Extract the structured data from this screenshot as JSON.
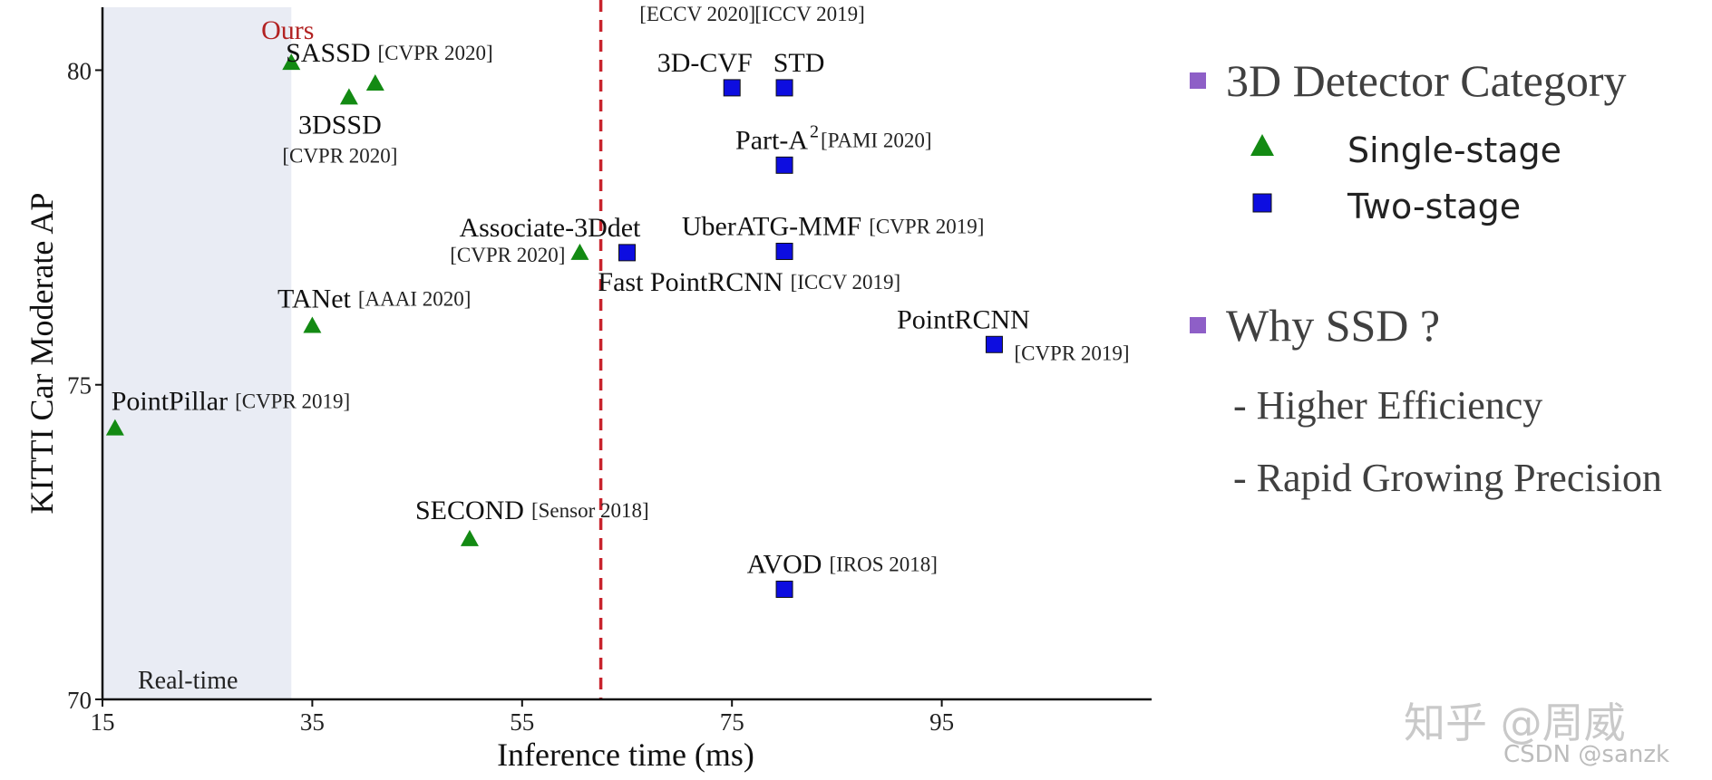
{
  "chart_data": {
    "type": "scatter",
    "xlabel": "Inference time (ms)",
    "ylabel": "KITTI Car Moderate AP",
    "xlim": [
      15,
      115
    ],
    "ylim": [
      70,
      81
    ],
    "xticks": [
      15,
      35,
      55,
      75,
      95
    ],
    "yticks": [
      70,
      75,
      80
    ],
    "realtime_region": {
      "x_from": 15,
      "x_to": 33,
      "label": "Real-time"
    },
    "threshold_line_x": 62.5,
    "colors": {
      "single": "#138a13",
      "two": "#0d0de0",
      "ours": "#b22222",
      "shade": "#e9ecf4",
      "threshold": "#c8232c"
    },
    "series": [
      {
        "name": "Single-stage",
        "marker": "triangle",
        "points": [
          {
            "x": 33.0,
            "y": 80.12,
            "name": "Ours",
            "ref": "",
            "highlight": true
          },
          {
            "x": 41.0,
            "y": 79.79,
            "name": "SASSD",
            "ref": "[CVPR 2020]"
          },
          {
            "x": 38.5,
            "y": 79.57,
            "name": "3DSSD",
            "ref": "[CVPR 2020]"
          },
          {
            "x": 60.5,
            "y": 77.1,
            "name": "Associate-3Ddet",
            "ref": "[CVPR 2020]"
          },
          {
            "x": 35.0,
            "y": 75.94,
            "name": "TANet",
            "ref": "[AAAI 2020]"
          },
          {
            "x": 16.2,
            "y": 74.31,
            "name": "PointPillar",
            "ref": "[CVPR 2019]"
          },
          {
            "x": 50.0,
            "y": 72.55,
            "name": "SECOND",
            "ref": "[Sensor 2018]"
          }
        ]
      },
      {
        "name": "Two-stage",
        "marker": "square",
        "points": [
          {
            "x": 75.0,
            "y": 79.72,
            "name": "3D-CVF",
            "ref": "[ECCV 2020]"
          },
          {
            "x": 80.0,
            "y": 79.72,
            "name": "STD",
            "ref": "[ICCV 2019]"
          },
          {
            "x": 80.0,
            "y": 78.49,
            "name": "Part-A",
            "sup": "2",
            "ref": "[PAMI 2020]"
          },
          {
            "x": 80.0,
            "y": 77.12,
            "name": "UberATG-MMF",
            "ref": "[CVPR 2019]"
          },
          {
            "x": 65.0,
            "y": 77.1,
            "name": "Fast PointRCNN",
            "ref": "[ICCV 2019]"
          },
          {
            "x": 100.0,
            "y": 75.64,
            "name": "PointRCNN",
            "ref": "[CVPR 2019]"
          },
          {
            "x": 80.0,
            "y": 71.75,
            "name": "AVOD",
            "ref": "[IROS 2018]"
          }
        ]
      }
    ]
  },
  "legend": {
    "title": "3D Detector Category",
    "items": [
      {
        "label": "Single-stage",
        "marker": "triangle"
      },
      {
        "label": "Two-stage",
        "marker": "square"
      }
    ],
    "bullet_color": "#8e5fc7"
  },
  "notes": {
    "title": "Why SSD ?",
    "bullets": [
      "- Higher Efficiency",
      "- Rapid Growing Precision"
    ]
  },
  "watermark": "知乎 @周威",
  "credit": "CSDN @sanzk"
}
